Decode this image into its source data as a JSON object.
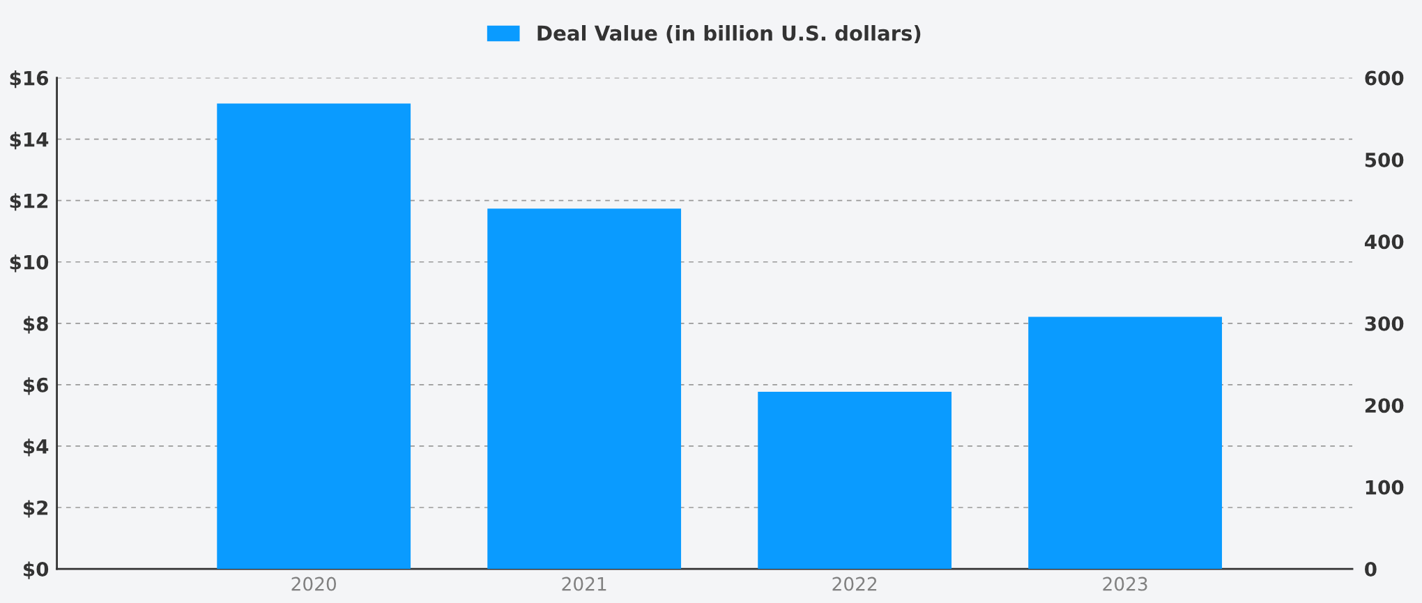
{
  "chart_data": {
    "type": "bar",
    "categories": [
      "2020",
      "2021",
      "2022",
      "2023"
    ],
    "series": [
      {
        "name": "Deal Value (in billion U.S. dollars)",
        "color": "#0a9bff",
        "values": [
          15.16,
          11.74,
          5.77,
          8.21
        ]
      }
    ],
    "ylim": [
      0,
      16
    ],
    "yticks": [
      {
        "value": 0,
        "label": "$0"
      },
      {
        "value": 2,
        "label": "$2"
      },
      {
        "value": 4,
        "label": "$4"
      },
      {
        "value": 6,
        "label": "$6"
      },
      {
        "value": 8,
        "label": "$8"
      },
      {
        "value": 10,
        "label": "$10"
      },
      {
        "value": 12,
        "label": "$12"
      },
      {
        "value": 14,
        "label": "$14"
      },
      {
        "value": 16,
        "label": "$16"
      }
    ],
    "y2lim": [
      0,
      600
    ],
    "y2ticks": [
      0,
      100,
      200,
      300,
      400,
      500,
      600
    ],
    "grid": "y",
    "legend": "top"
  }
}
